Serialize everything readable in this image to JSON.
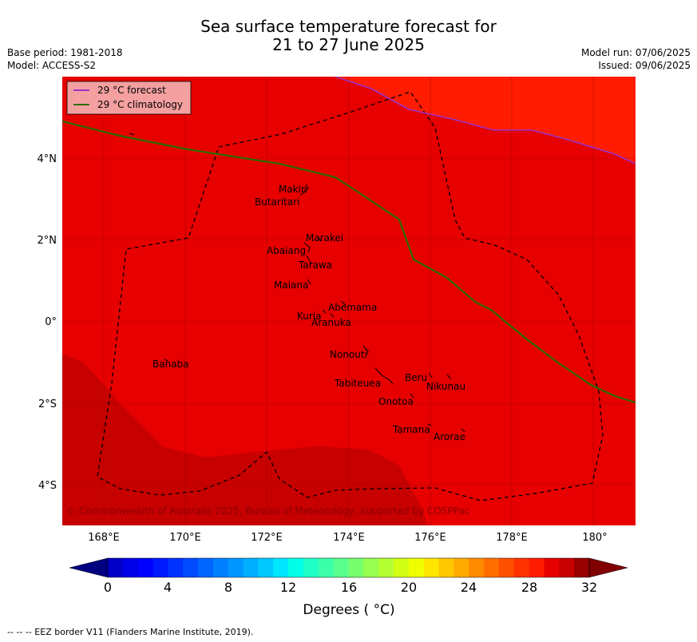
{
  "title": {
    "line1": "Sea surface temperature forecast for",
    "line2": "21 to 27 June 2025"
  },
  "meta_left": {
    "base_period": "Base period: 1981-2018",
    "model": "Model: ACCESS-S2"
  },
  "meta_right": {
    "model_run": "Model run: 07/06/2025",
    "issued": "Issued: 09/06/2025"
  },
  "legend": {
    "forecast": "29 °C  forecast",
    "climatology": "29 °C  climatology"
  },
  "map": {
    "lat_labels": [
      "4°N",
      "2°N",
      "0°",
      "2°S",
      "4°S"
    ],
    "lon_labels": [
      "168°E",
      "170°E",
      "172°E",
      "174°E",
      "176°E",
      "178°E",
      "180°"
    ],
    "copyright": "© Commonwealth of Australia 2025, Bureau of Meteorology, supported by COSPPac",
    "places": [
      "Makin",
      "Butaritari",
      "Marakei",
      "Abaiang",
      "Tarawa",
      "Maiana",
      "Abemama",
      "Kuria",
      "Aranuka",
      "Banaba",
      "Nonouti",
      "Beru",
      "Nikunau",
      "Tabiteuea",
      "Onotoa",
      "Tamana",
      "Arorae"
    ],
    "colors": {
      "sst_29_30": "#e60000",
      "sst_30_31": "#c70000",
      "sst_28_29": "#ff1c00",
      "forecast_line": "#9b30c8",
      "climatology_line": "#2f6b00"
    }
  },
  "colorbar": {
    "ticks": [
      "0",
      "4",
      "8",
      "12",
      "16",
      "20",
      "24",
      "28",
      "32"
    ],
    "label": "Degrees ( $^\\circ$C)",
    "label_display": "Degrees ( °C)",
    "colors": [
      "#000096",
      "#0000c8",
      "#0000e6",
      "#0000ff",
      "#0019ff",
      "#0032ff",
      "#004bff",
      "#0064ff",
      "#0080ff",
      "#0096ff",
      "#00afff",
      "#00c8ff",
      "#00e6ff",
      "#00ffe6",
      "#1effc8",
      "#3cffaa",
      "#5aff8c",
      "#78ff6e",
      "#96ff50",
      "#b4ff32",
      "#d2ff14",
      "#f0ff00",
      "#ffe600",
      "#ffc800",
      "#ffaa00",
      "#ff8c00",
      "#ff6e00",
      "#ff5000",
      "#ff3200",
      "#ff1c00",
      "#e60000",
      "#c70000",
      "#960000"
    ],
    "under_color": "#000080",
    "over_color": "#800000"
  },
  "footer": "--  --  -- EEZ border V11 (Flanders Marine Institute, 2019)."
}
